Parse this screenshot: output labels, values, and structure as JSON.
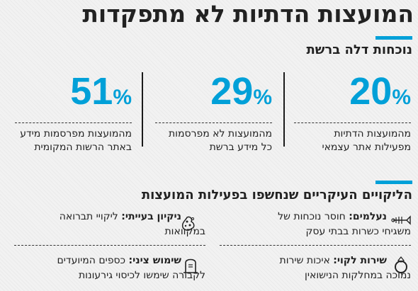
{
  "title": "המועצות הדתיות לא מתפקדות",
  "presence": {
    "heading": "נוכחות דלה ברשת",
    "stats": [
      {
        "value": "20",
        "unit": "%",
        "desc_line1": "מהמועצות הדתיות",
        "desc_line2": "מפעילות אתר עצמאי"
      },
      {
        "value": "29",
        "unit": "%",
        "desc_line1": "מהמועצות לא מפרסמות",
        "desc_line2": "כל מידע ברשת"
      },
      {
        "value": "51",
        "unit": "%",
        "desc_line1": "מהמועצות מפרסמות מידע",
        "desc_line2": "באתר הרשות המקומית"
      }
    ]
  },
  "failures": {
    "heading": "הליקויים העיקריים שנחשפו בפעילות המועצות",
    "items": [
      {
        "label": "נעלמים:",
        "text_line1": "חוסר נוכחות של",
        "text_line2": "משגיחי כשרות בבתי עסק",
        "icon": "fish-bone-icon"
      },
      {
        "label": "ניקיון בעייתי:",
        "text_line1": "ליקויי תברואה",
        "text_line2": "במקוואות",
        "icon": "germ-icon"
      },
      {
        "label": "שירות לקוי:",
        "text_line1": "איכות שירות",
        "text_line2": "נמוכה במחלקות הנישואין",
        "icon": "ring-icon"
      },
      {
        "label": "שימוש ציני:",
        "text_line1": "כספים המיועדים",
        "text_line2": "לקבורה שימשו לכיסוי גירעונות",
        "icon": "gravestone-icon"
      }
    ]
  },
  "colors": {
    "accent": "#00a0d8",
    "text": "#222222"
  }
}
